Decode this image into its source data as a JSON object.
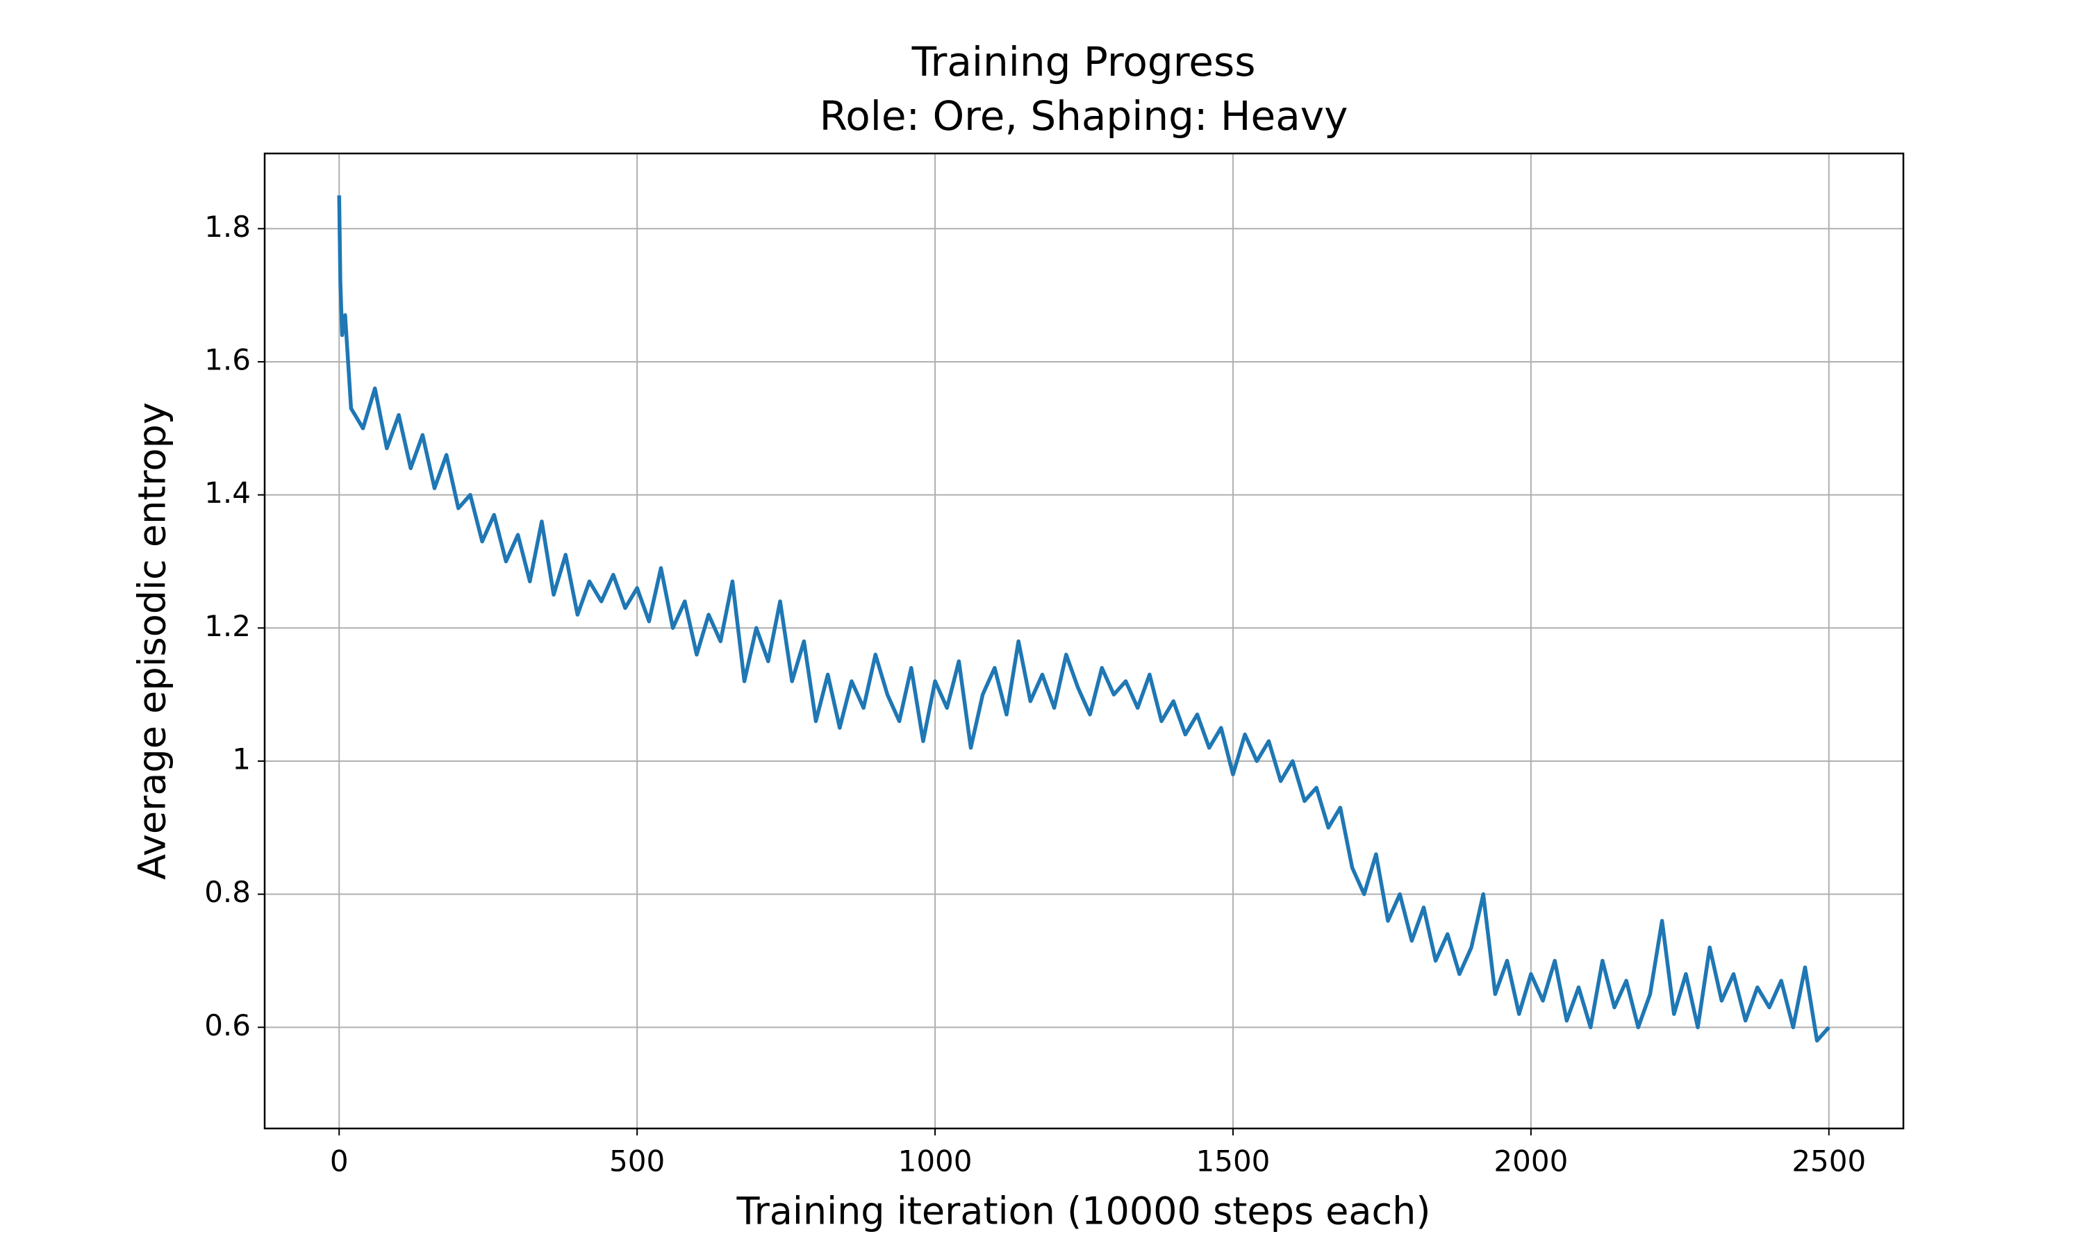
{
  "chart_data": {
    "type": "line",
    "title": "Training Progress",
    "subtitle": "Role: Ore, Shaping: Heavy",
    "xlabel": "Training iteration (10000 steps each)",
    "ylabel": "Average episodic entropy",
    "xlim": [
      -125,
      2625
    ],
    "ylim": [
      0.448,
      1.913
    ],
    "xticks": [
      0,
      500,
      1000,
      1500,
      2000,
      2500
    ],
    "yticks": [
      0.6,
      0.8,
      1.0,
      1.2,
      1.4,
      1.6,
      1.8
    ],
    "grid": true,
    "x": [
      0,
      2,
      5,
      10,
      20,
      40,
      60,
      80,
      100,
      120,
      140,
      160,
      180,
      200,
      220,
      240,
      260,
      280,
      300,
      320,
      340,
      360,
      380,
      400,
      420,
      440,
      460,
      480,
      500,
      520,
      540,
      560,
      580,
      600,
      620,
      640,
      660,
      680,
      700,
      720,
      740,
      760,
      780,
      800,
      820,
      840,
      860,
      880,
      900,
      920,
      940,
      960,
      980,
      1000,
      1020,
      1040,
      1060,
      1080,
      1100,
      1120,
      1140,
      1160,
      1180,
      1200,
      1220,
      1240,
      1260,
      1280,
      1300,
      1320,
      1340,
      1360,
      1380,
      1400,
      1420,
      1440,
      1460,
      1480,
      1500,
      1520,
      1540,
      1560,
      1580,
      1600,
      1620,
      1640,
      1660,
      1680,
      1700,
      1720,
      1740,
      1760,
      1780,
      1800,
      1820,
      1840,
      1860,
      1880,
      1900,
      1920,
      1940,
      1960,
      1980,
      2000,
      2020,
      2040,
      2060,
      2080,
      2100,
      2120,
      2140,
      2160,
      2180,
      2200,
      2220,
      2240,
      2260,
      2280,
      2300,
      2320,
      2340,
      2360,
      2380,
      2400,
      2420,
      2440,
      2460,
      2480,
      2500
    ],
    "series": [
      {
        "name": "entropy",
        "color": "#1f77b4",
        "values": [
          1.85,
          1.72,
          1.64,
          1.67,
          1.53,
          1.5,
          1.56,
          1.47,
          1.52,
          1.44,
          1.49,
          1.41,
          1.46,
          1.38,
          1.4,
          1.33,
          1.37,
          1.3,
          1.34,
          1.27,
          1.36,
          1.25,
          1.31,
          1.22,
          1.27,
          1.24,
          1.28,
          1.23,
          1.26,
          1.21,
          1.29,
          1.2,
          1.24,
          1.16,
          1.22,
          1.18,
          1.27,
          1.12,
          1.2,
          1.15,
          1.24,
          1.12,
          1.18,
          1.06,
          1.13,
          1.05,
          1.12,
          1.08,
          1.16,
          1.1,
          1.06,
          1.14,
          1.03,
          1.12,
          1.08,
          1.15,
          1.02,
          1.1,
          1.14,
          1.07,
          1.18,
          1.09,
          1.13,
          1.08,
          1.16,
          1.11,
          1.07,
          1.14,
          1.1,
          1.12,
          1.08,
          1.13,
          1.06,
          1.09,
          1.04,
          1.07,
          1.02,
          1.05,
          0.98,
          1.04,
          1.0,
          1.03,
          0.97,
          1.0,
          0.94,
          0.96,
          0.9,
          0.93,
          0.84,
          0.8,
          0.86,
          0.76,
          0.8,
          0.73,
          0.78,
          0.7,
          0.74,
          0.68,
          0.72,
          0.8,
          0.65,
          0.7,
          0.62,
          0.68,
          0.64,
          0.7,
          0.61,
          0.66,
          0.6,
          0.7,
          0.63,
          0.67,
          0.6,
          0.65,
          0.76,
          0.62,
          0.68,
          0.6,
          0.72,
          0.64,
          0.68,
          0.61,
          0.66,
          0.63,
          0.67,
          0.6,
          0.69,
          0.58,
          0.6
        ]
      }
    ]
  }
}
